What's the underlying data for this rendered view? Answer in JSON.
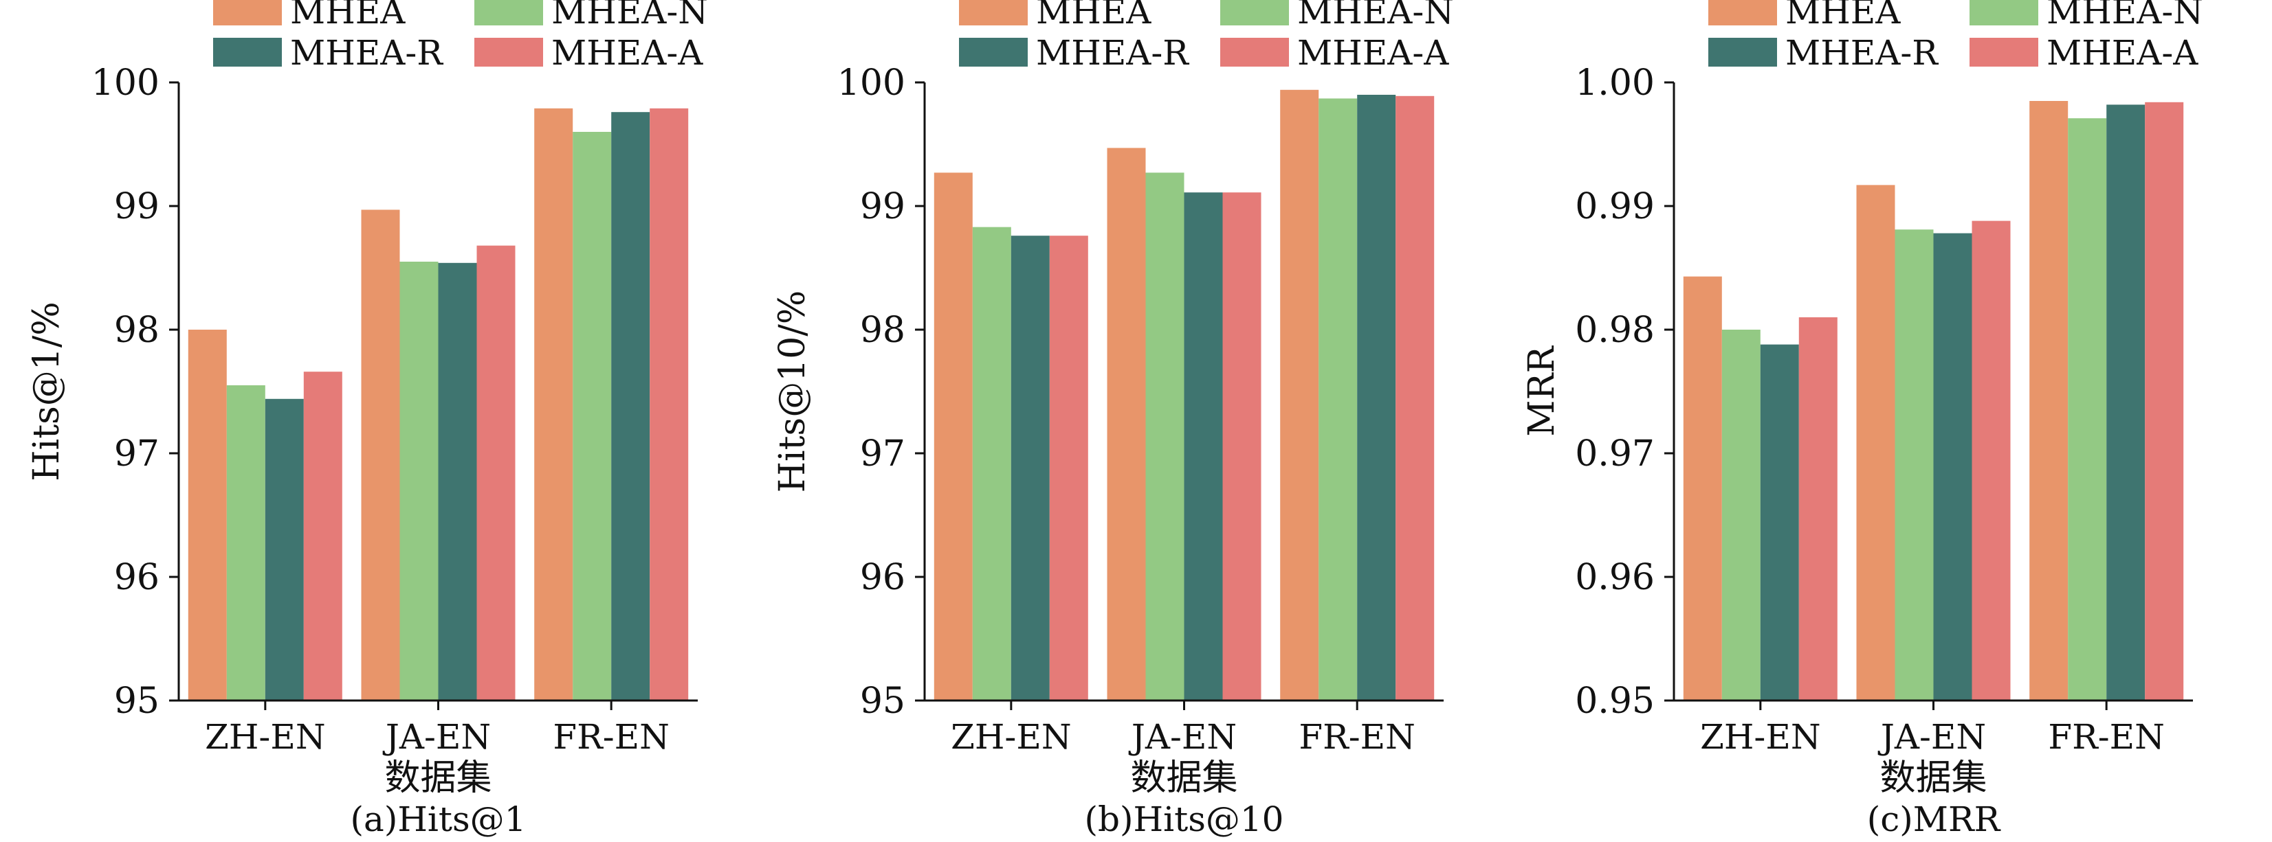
{
  "colors": {
    "MHEA": "#E8956A",
    "MHEA-N": "#93C984",
    "MHEA-R": "#3F7570",
    "MHEA-A": "#E57B78",
    "axis": "#111111"
  },
  "chart_data": [
    {
      "type": "bar",
      "title": "(a)Hits@1",
      "xlabel": "数据集",
      "ylabel": "Hits@1/%",
      "ylim": [
        95,
        100
      ],
      "yticks": [
        95,
        96,
        97,
        98,
        99,
        100
      ],
      "ytick_labels": [
        "95",
        "96",
        "97",
        "98",
        "99",
        "100"
      ],
      "categories": [
        "ZH-EN",
        "JA-EN",
        "FR-EN"
      ],
      "legend": {
        "position": "top",
        "entries": [
          "MHEA",
          "MHEA-N",
          "MHEA-R",
          "MHEA-A"
        ]
      },
      "grid": false,
      "series": [
        {
          "name": "MHEA",
          "values": [
            98.0,
            98.97,
            99.79
          ]
        },
        {
          "name": "MHEA-N",
          "values": [
            97.55,
            98.55,
            99.6
          ]
        },
        {
          "name": "MHEA-R",
          "values": [
            97.44,
            98.54,
            99.76
          ]
        },
        {
          "name": "MHEA-A",
          "values": [
            97.66,
            98.68,
            99.79
          ]
        }
      ]
    },
    {
      "type": "bar",
      "title": "(b)Hits@10",
      "xlabel": "数据集",
      "ylabel": "Hits@10/%",
      "ylim": [
        95,
        100
      ],
      "yticks": [
        95,
        96,
        97,
        98,
        99,
        100
      ],
      "ytick_labels": [
        "95",
        "96",
        "97",
        "98",
        "99",
        "100"
      ],
      "categories": [
        "ZH-EN",
        "JA-EN",
        "FR-EN"
      ],
      "legend": {
        "position": "top",
        "entries": [
          "MHEA",
          "MHEA-N",
          "MHEA-R",
          "MHEA-A"
        ]
      },
      "grid": false,
      "series": [
        {
          "name": "MHEA",
          "values": [
            99.27,
            99.47,
            99.94
          ]
        },
        {
          "name": "MHEA-N",
          "values": [
            98.83,
            99.27,
            99.87
          ]
        },
        {
          "name": "MHEA-R",
          "values": [
            98.76,
            99.11,
            99.9
          ]
        },
        {
          "name": "MHEA-A",
          "values": [
            98.76,
            99.11,
            99.89
          ]
        }
      ]
    },
    {
      "type": "bar",
      "title": "(c)MRR",
      "xlabel": "数据集",
      "ylabel": "MRR",
      "ylim": [
        0.95,
        1.0
      ],
      "yticks": [
        0.95,
        0.96,
        0.97,
        0.98,
        0.99,
        1.0
      ],
      "ytick_labels": [
        "0.95",
        "0.96",
        "0.97",
        "0.98",
        "0.99",
        "1.00"
      ],
      "categories": [
        "ZH-EN",
        "JA-EN",
        "FR-EN"
      ],
      "legend": {
        "position": "top",
        "entries": [
          "MHEA",
          "MHEA-N",
          "MHEA-R",
          "MHEA-A"
        ]
      },
      "grid": false,
      "series": [
        {
          "name": "MHEA",
          "values": [
            0.9843,
            0.9917,
            0.9985
          ]
        },
        {
          "name": "MHEA-N",
          "values": [
            0.98,
            0.9881,
            0.9971
          ]
        },
        {
          "name": "MHEA-R",
          "values": [
            0.9788,
            0.9878,
            0.9982
          ]
        },
        {
          "name": "MHEA-A",
          "values": [
            0.981,
            0.9888,
            0.9984
          ]
        }
      ]
    }
  ]
}
